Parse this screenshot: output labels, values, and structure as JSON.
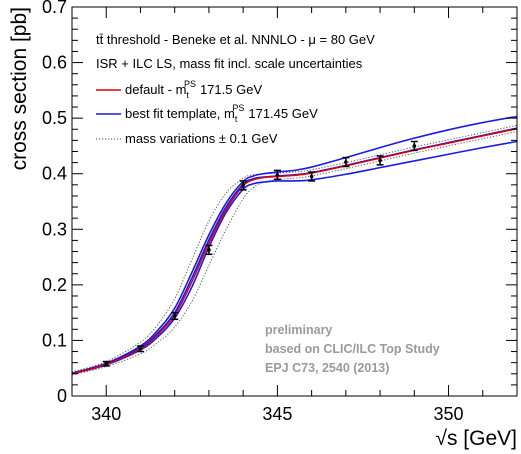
{
  "chart_data": {
    "type": "line",
    "xlabel_radical": "√",
    "xlabel_rest": "s [GeV]",
    "ylabel": "cross section [pb]",
    "xlim": [
      339,
      352
    ],
    "ylim": [
      0,
      0.7
    ],
    "x_ticks": [
      340,
      345,
      350
    ],
    "y_ticks": [
      0,
      0.1,
      0.2,
      0.3,
      0.4,
      0.5,
      0.6,
      0.7
    ],
    "x_tick_labels": [
      "340",
      "345",
      "350"
    ],
    "y_tick_labels": [
      "0",
      "0.1",
      "0.2",
      "0.3",
      "0.4",
      "0.5",
      "0.6",
      "0.7"
    ],
    "header": {
      "line1": "tt̄ threshold - Beneke et al. NNNLO - μ = 80 GeV",
      "line2": "ISR + ILC LS, mass fit incl. scale uncertainties"
    },
    "legend": [
      {
        "label_main": "default - m",
        "sub": "t",
        "sup": "PS",
        "value": "171.5 GeV",
        "color": "#e00000",
        "style": "solid"
      },
      {
        "label_main": "best fit template,  m",
        "sub": "t",
        "sup": "PS",
        "value": "171.45 GeV",
        "color": "#1a1ae6",
        "style": "solid"
      },
      {
        "label_main": "mass variations ± 0.1 GeV",
        "color": "#555555",
        "style": "dotted"
      }
    ],
    "annotation": {
      "line1": "preliminary",
      "line2": "based on CLIC/ILC Top Study",
      "line3": "EPJ C73, 2540 (2013)"
    },
    "data_points": [
      {
        "x": 340.0,
        "y": 0.058,
        "err": 0.004
      },
      {
        "x": 341.0,
        "y": 0.085,
        "err": 0.005
      },
      {
        "x": 342.0,
        "y": 0.144,
        "err": 0.006
      },
      {
        "x": 343.0,
        "y": 0.263,
        "err": 0.008
      },
      {
        "x": 344.0,
        "y": 0.379,
        "err": 0.008
      },
      {
        "x": 345.0,
        "y": 0.398,
        "err": 0.008
      },
      {
        "x": 346.0,
        "y": 0.395,
        "err": 0.008
      },
      {
        "x": 347.0,
        "y": 0.421,
        "err": 0.008
      },
      {
        "x": 348.0,
        "y": 0.424,
        "err": 0.008
      },
      {
        "x": 349.0,
        "y": 0.45,
        "err": 0.008
      }
    ],
    "default_curve": {
      "x": [
        339,
        340,
        341,
        341.5,
        342,
        342.5,
        343,
        343.5,
        344,
        344.3,
        344.6,
        345,
        345.5,
        346,
        347,
        348,
        349,
        350,
        351,
        352
      ],
      "y": [
        0.04,
        0.057,
        0.085,
        0.11,
        0.145,
        0.205,
        0.275,
        0.335,
        0.378,
        0.389,
        0.393,
        0.395,
        0.397,
        0.401,
        0.414,
        0.428,
        0.442,
        0.455,
        0.468,
        0.481
      ]
    },
    "best_fit_curve": {
      "x": [
        339,
        340,
        341,
        341.5,
        342,
        342.5,
        343,
        343.5,
        344,
        344.3,
        344.6,
        345,
        345.5,
        346,
        347,
        348,
        349,
        350,
        351,
        352
      ],
      "y": [
        0.041,
        0.058,
        0.087,
        0.113,
        0.15,
        0.212,
        0.281,
        0.34,
        0.381,
        0.391,
        0.394,
        0.396,
        0.398,
        0.402,
        0.415,
        0.429,
        0.443,
        0.456,
        0.469,
        0.482
      ]
    },
    "band_upper": {
      "x": [
        339,
        340,
        341,
        341.5,
        342,
        342.5,
        343,
        343.5,
        344,
        344.3,
        344.6,
        345,
        345.5,
        346,
        347,
        348,
        349,
        350,
        351,
        352
      ],
      "y": [
        0.041,
        0.059,
        0.09,
        0.118,
        0.158,
        0.222,
        0.29,
        0.347,
        0.386,
        0.396,
        0.4,
        0.403,
        0.406,
        0.412,
        0.429,
        0.447,
        0.464,
        0.479,
        0.492,
        0.503
      ]
    },
    "band_lower": {
      "x": [
        339,
        340,
        341,
        341.5,
        342,
        342.5,
        343,
        343.5,
        344,
        344.3,
        344.6,
        345,
        345.5,
        346,
        347,
        348,
        349,
        350,
        351,
        352
      ],
      "y": [
        0.04,
        0.056,
        0.083,
        0.106,
        0.14,
        0.196,
        0.268,
        0.33,
        0.372,
        0.382,
        0.385,
        0.387,
        0.387,
        0.389,
        0.399,
        0.411,
        0.423,
        0.435,
        0.447,
        0.458
      ]
    },
    "mass_var_left": {
      "x": [
        339,
        340,
        341,
        341.5,
        342,
        342.5,
        343,
        343.5,
        344,
        344.3,
        344.6,
        345,
        345.5,
        346,
        347,
        348,
        349,
        350,
        351,
        352
      ],
      "y": [
        0.043,
        0.062,
        0.097,
        0.128,
        0.175,
        0.245,
        0.315,
        0.365,
        0.392,
        0.398,
        0.4,
        0.401,
        0.403,
        0.407,
        0.42,
        0.434,
        0.448,
        0.461,
        0.474,
        0.487
      ]
    },
    "mass_var_right": {
      "x": [
        339,
        340,
        341,
        341.5,
        342,
        342.5,
        343,
        343.5,
        344,
        344.3,
        344.6,
        345,
        345.5,
        346,
        347,
        348,
        349,
        350,
        351,
        352
      ],
      "y": [
        0.038,
        0.053,
        0.076,
        0.096,
        0.124,
        0.17,
        0.235,
        0.3,
        0.355,
        0.375,
        0.385,
        0.389,
        0.392,
        0.396,
        0.409,
        0.423,
        0.437,
        0.45,
        0.463,
        0.476
      ]
    },
    "grid": false
  }
}
